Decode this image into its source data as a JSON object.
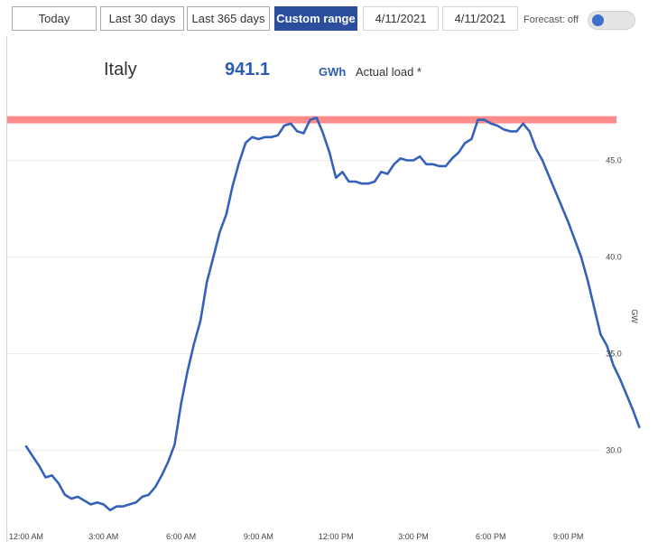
{
  "toolbar": {
    "today": "Today",
    "last30": "Last 30 days",
    "last365": "Last 365 days",
    "custom": "Custom range",
    "date_from": "4/11/2021",
    "date_to": "4/11/2021",
    "forecast_label": "Forecast: off",
    "forecast_on": false
  },
  "summary": {
    "region": "Italy",
    "value": "941.1",
    "unit": "GWh",
    "series_label": "Actual load *"
  },
  "colors": {
    "line": "#3562b8",
    "peak_band": "#ff8c8c",
    "active_button": "#2b4f9e"
  },
  "chart_data": {
    "type": "line",
    "title": "",
    "xlabel": "",
    "ylabel": "GW",
    "x_ticks": [
      "12:00 AM",
      "3:00 AM",
      "6:00 AM",
      "9:00 AM",
      "12:00 PM",
      "3:00 PM",
      "6:00 PM",
      "9:00 PM"
    ],
    "x_tick_hours": [
      0,
      3,
      6,
      9,
      12,
      15,
      18,
      21
    ],
    "y_ticks": [
      "30.0",
      "35.0",
      "40.0",
      "45.0"
    ],
    "y_tick_values": [
      30,
      35,
      40,
      45
    ],
    "xlim": [
      0,
      24
    ],
    "ylim": [
      26.5,
      47.7
    ],
    "grid": "horizontal",
    "y_axis_side": "right",
    "reference_band_gw": 47.1,
    "series": [
      {
        "hours": [
          0,
          0.25,
          0.5,
          0.75,
          1,
          1.25,
          1.5,
          1.75,
          2,
          2.25,
          2.5,
          2.75,
          3,
          3.25,
          3.5,
          3.75,
          4,
          4.25,
          4.5,
          4.75,
          5,
          5.25,
          5.5,
          5.75,
          6,
          6.25,
          6.5,
          6.75,
          7,
          7.25,
          7.5,
          7.75,
          8,
          8.25,
          8.5,
          8.75,
          9,
          9.25,
          9.5,
          9.75,
          10,
          10.25,
          10.5,
          10.75,
          11,
          11.25,
          11.5,
          11.75,
          12,
          12.25,
          12.5,
          12.75,
          13,
          13.25,
          13.5,
          13.75,
          14,
          14.25,
          14.5,
          14.75,
          15,
          15.25,
          15.5,
          15.75,
          16,
          16.25,
          16.5,
          16.75,
          17,
          17.25,
          17.5,
          17.75,
          18,
          18.25,
          18.5,
          18.75,
          19,
          19.25,
          19.5,
          19.75,
          20,
          20.25,
          20.5,
          20.75,
          21,
          21.25,
          21.5,
          21.75,
          22,
          22.25,
          22.5,
          22.75,
          23,
          23.25,
          23.5,
          23.75
        ],
        "values": [
          30.2,
          29.7,
          29.2,
          28.6,
          28.7,
          28.3,
          27.7,
          27.5,
          27.6,
          27.4,
          27.2,
          27.3,
          27.2,
          26.9,
          27.1,
          27.1,
          27.2,
          27.3,
          27.6,
          27.7,
          28.1,
          28.7,
          29.4,
          30.3,
          32.4,
          34.1,
          35.5,
          36.7,
          38.7,
          40.0,
          41.3,
          42.2,
          43.7,
          44.9,
          45.9,
          46.2,
          46.1,
          46.2,
          46.2,
          46.3,
          46.8,
          46.9,
          46.5,
          46.4,
          47.1,
          47.2,
          46.4,
          45.4,
          44.1,
          44.4,
          43.9,
          43.9,
          43.8,
          43.8,
          43.9,
          44.4,
          44.3,
          44.8,
          45.1,
          45.0,
          45.0,
          45.2,
          44.8,
          44.8,
          44.7,
          44.7,
          45.1,
          45.4,
          45.9,
          46.1,
          47.1,
          47.1,
          46.9,
          46.8,
          46.6,
          46.5,
          46.5,
          46.9,
          46.5,
          45.6,
          45.0,
          44.2,
          43.4,
          42.6,
          41.8,
          40.9,
          40.0,
          38.8,
          37.4,
          36.0,
          35.4,
          34.4,
          33.7,
          32.9,
          32.1,
          31.2
        ]
      }
    ]
  }
}
